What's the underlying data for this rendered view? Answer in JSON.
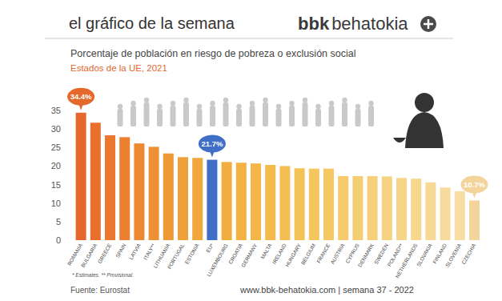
{
  "header": {
    "title": "el gráfico de la semana",
    "brand_bold": "bbk",
    "brand": "behatokia"
  },
  "chart_data": {
    "type": "bar",
    "title": "Porcentaje de población en riesgo de pobreza o exclusión social",
    "subtitle": "Estados de la UE, 2021",
    "categories": [
      "ROMANIA",
      "BULGARIA",
      "GREECE",
      "SPAIN",
      "LATVIA",
      "ITALY**",
      "LITHUANIA",
      "PORTUGAL",
      "ESTONIA",
      "EU*",
      "LUXEMBOURG",
      "CROATIA",
      "GERMANY",
      "MALTA",
      "IRELAND",
      "HUNGARY",
      "BELGIUM",
      "FRANCE",
      "AUSTRIA",
      "CYPRUS",
      "DENMARK",
      "SWEDEN",
      "POLAND**",
      "NETHERLANDS",
      "SLOVAKIA",
      "FINLAND",
      "SLOVENIA",
      "CZECHIA"
    ],
    "values": [
      34.4,
      31.7,
      28.3,
      27.8,
      26.1,
      25.2,
      23.4,
      22.4,
      22.2,
      21.7,
      21.1,
      20.9,
      20.7,
      20.3,
      20.0,
      19.4,
      19.3,
      19.3,
      17.3,
      17.3,
      17.3,
      17.2,
      16.8,
      16.6,
      15.6,
      14.2,
      13.2,
      10.7
    ],
    "value_labels": [
      "34.4%",
      null,
      null,
      null,
      null,
      null,
      null,
      null,
      null,
      "21.7%",
      null,
      null,
      null,
      null,
      null,
      null,
      null,
      null,
      null,
      null,
      null,
      null,
      null,
      null,
      null,
      null,
      null,
      "10.7%"
    ],
    "colors": [
      "#e5672b",
      "#e8702c",
      "#ea782e",
      "#ec8030",
      "#ed8832",
      "#ee9034",
      "#ef9836",
      "#f0a038",
      "#f1a73b",
      "#3f6fc6",
      "#f2ad3f",
      "#f3b243",
      "#f3b647",
      "#f4ba4c",
      "#f4be52",
      "#f5c258",
      "#f5c55e",
      "#f5c864",
      "#f6cb6b",
      "#f6ce72",
      "#f6d179",
      "#f6d380",
      "#f7d587",
      "#f7d78e",
      "#f7d995",
      "#f7db9c",
      "#f8dda3",
      "#f3d59b"
    ],
    "ylim": [
      0,
      35
    ],
    "yticks": [
      0,
      5,
      10,
      15,
      20,
      25,
      30,
      35
    ],
    "grid": false
  },
  "footer": {
    "note": "* Estimates. ** Provisional.",
    "source": "Fuente: Eurostat",
    "site": "www.bbk-behatokia.com | semana 37 - 2022"
  }
}
